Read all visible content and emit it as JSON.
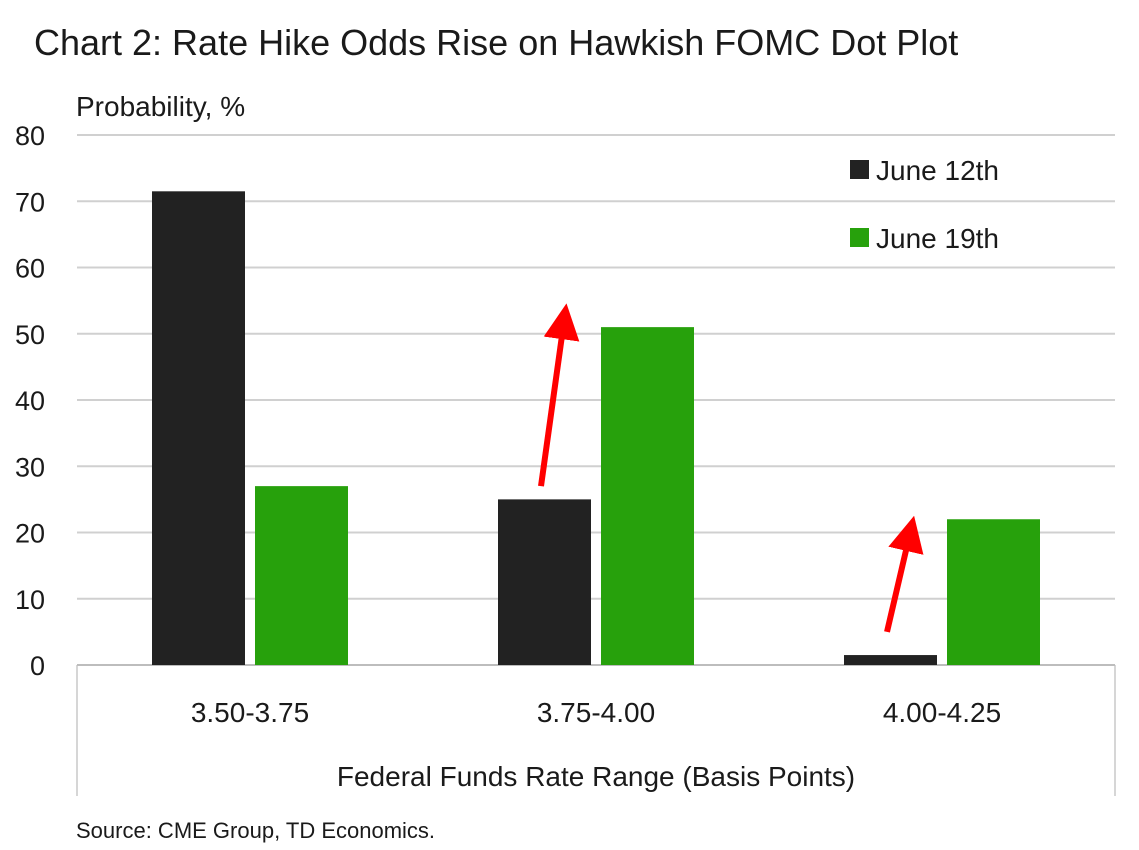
{
  "chart_data": {
    "type": "bar",
    "title": "Chart 2: Rate Hike Odds Rise on Hawkish FOMC Dot Plot",
    "ylabel": "Probability, %",
    "xlabel": "Federal Funds Rate Range (Basis Points)",
    "categories": [
      "3.50-3.75",
      "3.75-4.00",
      "4.00-4.25"
    ],
    "series": [
      {
        "name": "June 12th",
        "color": "#222222",
        "values": [
          71.5,
          25,
          1.5
        ]
      },
      {
        "name": "June 19th",
        "color": "#27a10c",
        "values": [
          27,
          51,
          22
        ]
      }
    ],
    "ylim": [
      0,
      80
    ],
    "yticks": [
      0,
      10,
      20,
      30,
      40,
      50,
      60,
      70,
      80
    ],
    "grid": true,
    "legend_position": "top-right",
    "annotations": [
      {
        "type": "arrow",
        "color": "#ff0000",
        "category": "3.75-4.00",
        "from_value": 27,
        "to_value": 54
      },
      {
        "type": "arrow",
        "color": "#ff0000",
        "category": "4.00-4.25",
        "from_value": 5,
        "to_value": 22
      }
    ],
    "source": "Source: CME Group, TD Economics."
  }
}
